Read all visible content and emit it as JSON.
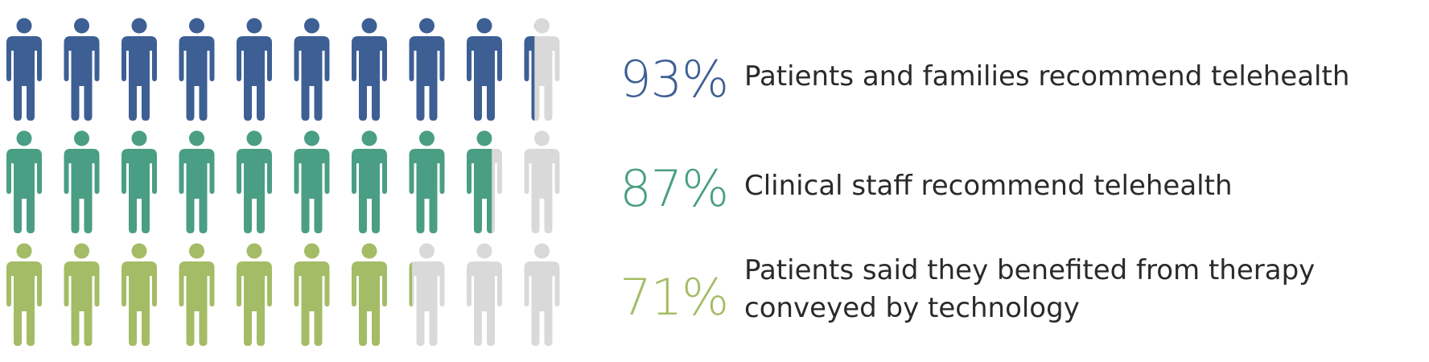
{
  "colors": {
    "patients": "#3d5f94",
    "staff": "#4a9e84",
    "benefit": "#a4bc66",
    "empty": "#d9d9d9",
    "label_text": "#2a2a2a"
  },
  "chart_data": {
    "type": "icon-array",
    "icons_per_row": 10,
    "icon": "person-icon",
    "rows": [
      {
        "key": "patients",
        "value": 93,
        "percent_label": "93%",
        "label": "Patients and families recommend telehealth"
      },
      {
        "key": "staff",
        "value": 87,
        "percent_label": "87%",
        "label": "Clinical staff recommend telehealth"
      },
      {
        "key": "benefit",
        "value": 71,
        "percent_label": "71%",
        "label": "Patients said they benefited from therapy conveyed by technology"
      }
    ]
  }
}
